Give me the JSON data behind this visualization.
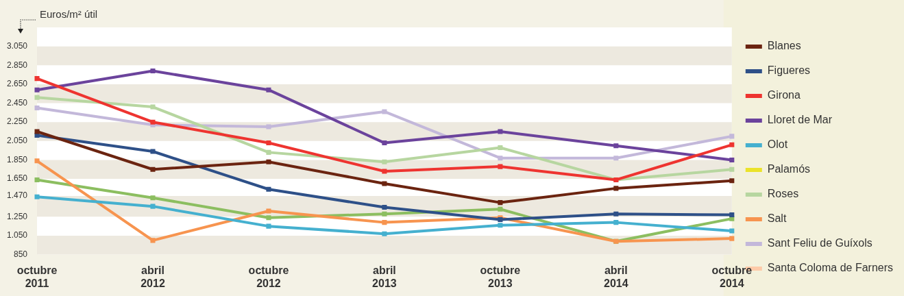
{
  "chart_data": {
    "type": "line",
    "ylabel": "Euros/m² útil",
    "categories": [
      "octubre 2011",
      "abril 2012",
      "octubre 2012",
      "abril 2013",
      "octubre 2013",
      "abril 2014",
      "octubre 2014"
    ],
    "series": [
      {
        "name": "Blanes",
        "color": "#6b2410",
        "values": [
          2150,
          1750,
          1830,
          1600,
          1400,
          1550,
          1630
        ]
      },
      {
        "name": "Figueres",
        "color": "#2e5088",
        "values": [
          2110,
          1940,
          1540,
          1350,
          1220,
          1280,
          1270
        ]
      },
      {
        "name": "Girona",
        "color": "#ee3430",
        "values": [
          2710,
          2250,
          2030,
          1730,
          1780,
          1640,
          2010
        ]
      },
      {
        "name": "Lloret de Mar",
        "color": "#6b439c",
        "values": [
          2590,
          2790,
          2590,
          2030,
          2150,
          2000,
          1850
        ]
      },
      {
        "name": "Olot",
        "color": "#45b0cf",
        "values": [
          1460,
          1360,
          1150,
          1070,
          1160,
          1190,
          1100
        ]
      },
      {
        "name": "Palamós",
        "color": "#ebe32a",
        "values": [
          null,
          null,
          null,
          null,
          null,
          null,
          null
        ]
      },
      {
        "name": "Roses",
        "color": "#b7d6a0",
        "values": [
          2510,
          2410,
          1930,
          1830,
          1980,
          1640,
          1750
        ]
      },
      {
        "name": "Salt",
        "color": "#f7944f",
        "values": [
          1840,
          1000,
          1310,
          1190,
          1240,
          990,
          1020
        ]
      },
      {
        "name": "Sant Feliu de Guíxols",
        "color": "#c3b8da",
        "values": [
          2400,
          2220,
          2200,
          2360,
          1870,
          1870,
          2100
        ]
      },
      {
        "name": "Santa Coloma de Farners",
        "color": "#fdcaa8",
        "values": [
          null,
          null,
          null,
          null,
          null,
          null,
          null
        ]
      },
      {
        "color": "#8cbe60",
        "values": [
          1640,
          1450,
          1240,
          1280,
          1330,
          990,
          1230
        ]
      }
    ],
    "ylim": [
      850,
      3250
    ],
    "yticks": [
      850,
      {
        "value": 1050,
        "label": "1.050"
      },
      {
        "value": 1250,
        "label": "1.250"
      },
      {
        "value": 1470,
        "label": "1.470"
      },
      {
        "value": 1650,
        "label": "1.650"
      },
      {
        "value": 1850,
        "label": "1.850"
      },
      {
        "value": 2050,
        "label": "2.050"
      },
      {
        "value": 2250,
        "label": "2.250"
      },
      {
        "value": 2450,
        "label": "2.450"
      },
      {
        "value": 2650,
        "label": "2.650"
      },
      {
        "value": 2850,
        "label": "2.850"
      },
      {
        "value": 3050,
        "label": "3.050"
      }
    ],
    "bands": [
      {
        "axis": "y",
        "from": 850,
        "to": 1050,
        "color": "#ede9df"
      },
      {
        "axis": "y",
        "from": 1250,
        "to": 1470,
        "color": "#ede9df"
      },
      {
        "axis": "y",
        "from": 1650,
        "to": 1850,
        "color": "#ede9df"
      },
      {
        "axis": "y",
        "from": 2050,
        "to": 2250,
        "color": "#ede9df"
      },
      {
        "axis": "y",
        "from": 2450,
        "to": 2650,
        "color": "#ede9df"
      },
      {
        "axis": "y",
        "from": 2850,
        "to": 3050,
        "color": "#ede9df"
      }
    ],
    "marker": "square",
    "line_style": "solid",
    "legend": "right"
  }
}
